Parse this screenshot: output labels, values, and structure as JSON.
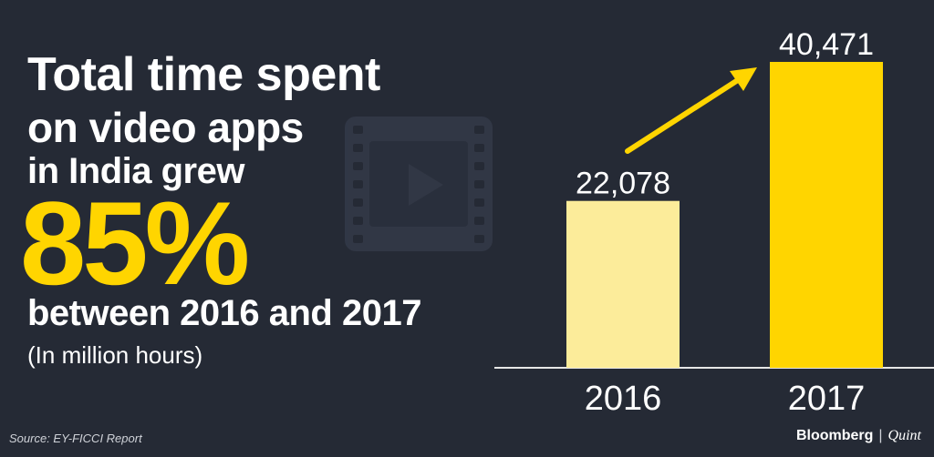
{
  "headline": {
    "line1": "Total time spent",
    "line2": "on video apps",
    "line3": "in India grew",
    "percent": "85%",
    "line4": "between 2016 and 2017",
    "unit": "(In million hours)"
  },
  "source": "Source: EY-FICCI Report",
  "brand": {
    "primary": "Bloomberg",
    "secondary": "Quint"
  },
  "icon": "film-play-icon",
  "colors": {
    "background": "#252a35",
    "bar_2016": "#fcec9a",
    "bar_2017": "#ffd500",
    "accent": "#ffd500"
  },
  "chart_data": {
    "type": "bar",
    "categories": [
      "2016",
      "2017"
    ],
    "values": [
      22078,
      40471
    ],
    "value_labels": [
      "22,078",
      "40,471"
    ],
    "title": "",
    "xlabel": "",
    "ylabel": "",
    "ylim": [
      0,
      40471
    ],
    "grid": false
  }
}
